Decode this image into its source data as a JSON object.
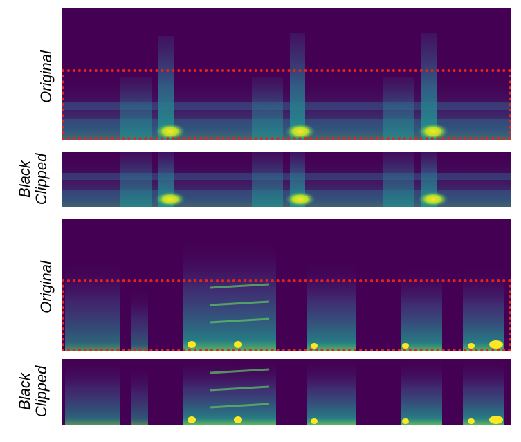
{
  "labels": {
    "original": "Original",
    "black": "Black",
    "clipped": "Clipped"
  },
  "colors": {
    "background": "#440154",
    "low": "#3b528b",
    "mid": "#21918c",
    "high": "#5ec962",
    "peak": "#fde725",
    "crop_box": "#e8231c"
  }
}
